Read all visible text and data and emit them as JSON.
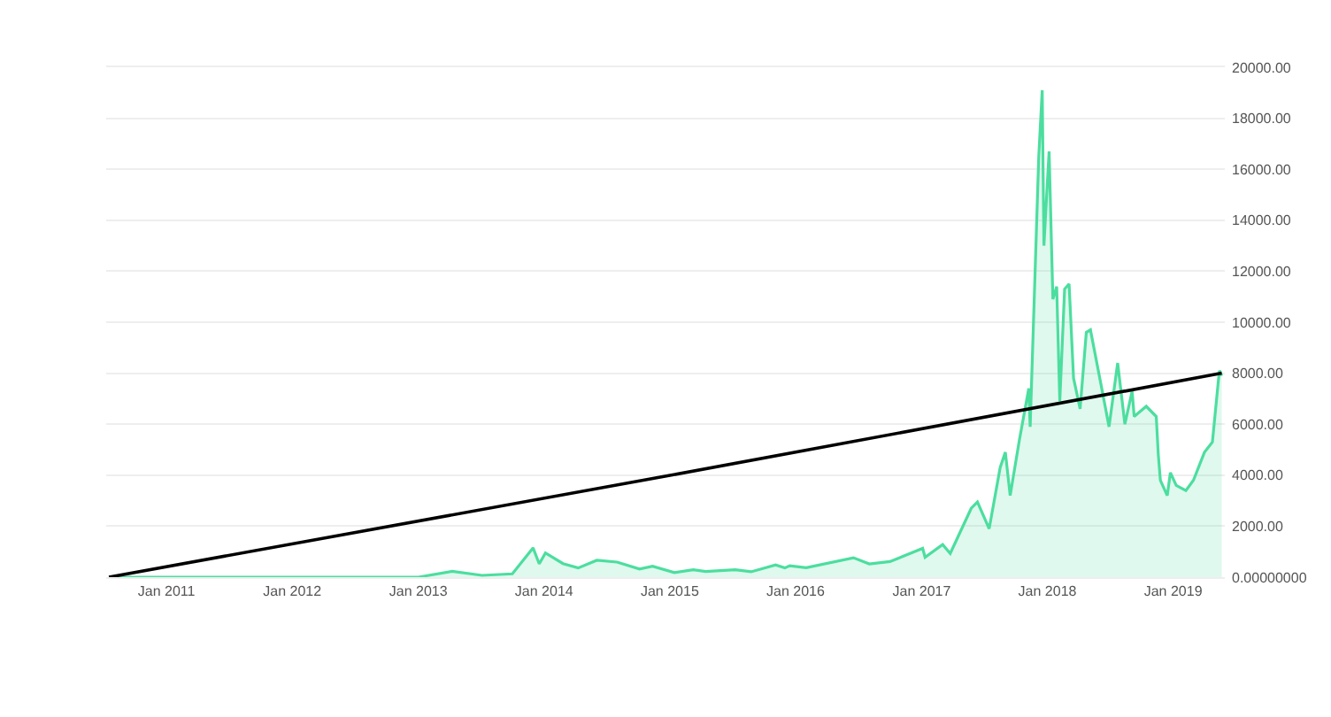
{
  "chart_data": {
    "type": "area",
    "xlim": [
      "2010-07-10",
      "2019-05-31"
    ],
    "xticks": [
      {
        "value": "2011-01-01",
        "label": "Jan 2011"
      },
      {
        "value": "2012-01-01",
        "label": "Jan 2012"
      },
      {
        "value": "2013-01-01",
        "label": "Jan 2013"
      },
      {
        "value": "2014-01-01",
        "label": "Jan 2014"
      },
      {
        "value": "2015-01-01",
        "label": "Jan 2015"
      },
      {
        "value": "2016-01-01",
        "label": "Jan 2016"
      },
      {
        "value": "2017-01-01",
        "label": "Jan 2017"
      },
      {
        "value": "2018-01-01",
        "label": "Jan 2018"
      },
      {
        "value": "2019-01-01",
        "label": "Jan 2019"
      }
    ],
    "ylim": [
      0,
      20000
    ],
    "yticks": [
      {
        "value": 0,
        "label": "0.00000000"
      },
      {
        "value": 2000,
        "label": "2000.00"
      },
      {
        "value": 4000,
        "label": "4000.00"
      },
      {
        "value": 6000,
        "label": "6000.00"
      },
      {
        "value": 8000,
        "label": "8000.00"
      },
      {
        "value": 10000,
        "label": "10000.00"
      },
      {
        "value": 12000,
        "label": "12000.00"
      },
      {
        "value": 14000,
        "label": "14000.00"
      },
      {
        "value": 16000,
        "label": "16000.00"
      },
      {
        "value": 18000,
        "label": "18000.00"
      },
      {
        "value": 20000,
        "label": "20000.00"
      }
    ],
    "grid": "y",
    "series": [
      {
        "color": "#4cde9f",
        "x": [
          "2010-07-18",
          "2011-06-08",
          "2013-01-01",
          "2013-04-09",
          "2013-07-05",
          "2013-10-01",
          "2013-11-30",
          "2013-12-18",
          "2014-01-05",
          "2014-02-25",
          "2014-04-10",
          "2014-06-03",
          "2014-08-01",
          "2014-10-05",
          "2014-11-12",
          "2015-01-14",
          "2015-03-10",
          "2015-04-15",
          "2015-07-10",
          "2015-08-25",
          "2015-11-04",
          "2015-12-01",
          "2015-12-15",
          "2016-02-01",
          "2016-06-17",
          "2016-08-02",
          "2016-10-01",
          "2017-01-04",
          "2017-01-11",
          "2017-03-03",
          "2017-03-25",
          "2017-05-25",
          "2017-06-12",
          "2017-07-16",
          "2017-08-17",
          "2017-09-01",
          "2017-09-15",
          "2017-10-12",
          "2017-11-08",
          "2017-11-12",
          "2017-12-07",
          "2017-12-17",
          "2017-12-22",
          "2018-01-06",
          "2018-01-17",
          "2018-01-28",
          "2018-02-06",
          "2018-02-20",
          "2018-03-05",
          "2018-03-18",
          "2018-04-06",
          "2018-04-24",
          "2018-05-06",
          "2018-06-05",
          "2018-06-29",
          "2018-07-24",
          "2018-08-14",
          "2018-09-04",
          "2018-09-10",
          "2018-10-15",
          "2018-11-13",
          "2018-11-19",
          "2018-11-25",
          "2018-12-15",
          "2018-12-24",
          "2019-01-10",
          "2019-02-07",
          "2019-03-01",
          "2019-04-02",
          "2019-04-25",
          "2019-05-13",
          "2019-05-16",
          "2019-05-22"
        ],
        "values": [
          0,
          0,
          0,
          230,
          70,
          130,
          1150,
          520,
          950,
          530,
          360,
          660,
          590,
          320,
          430,
          180,
          290,
          220,
          290,
          210,
          480,
          360,
          450,
          370,
          760,
          520,
          610,
          1130,
          780,
          1280,
          930,
          2700,
          2950,
          1900,
          4300,
          4900,
          3200,
          5400,
          7400,
          5900,
          16500,
          19100,
          13000,
          16700,
          10900,
          11400,
          6900,
          11300,
          11500,
          7800,
          6600,
          9600,
          9700,
          7600,
          5900,
          8400,
          6000,
          7300,
          6300,
          6700,
          6300,
          4800,
          3800,
          3200,
          4100,
          3600,
          3400,
          3800,
          4900,
          5300,
          7800,
          8100,
          7900
        ]
      },
      {
        "type": "line",
        "color": "#000000",
        "x": [
          "2010-07-18",
          "2015-01-05",
          "2019-05-22"
        ],
        "values": [
          0,
          4000,
          8000
        ]
      }
    ]
  }
}
